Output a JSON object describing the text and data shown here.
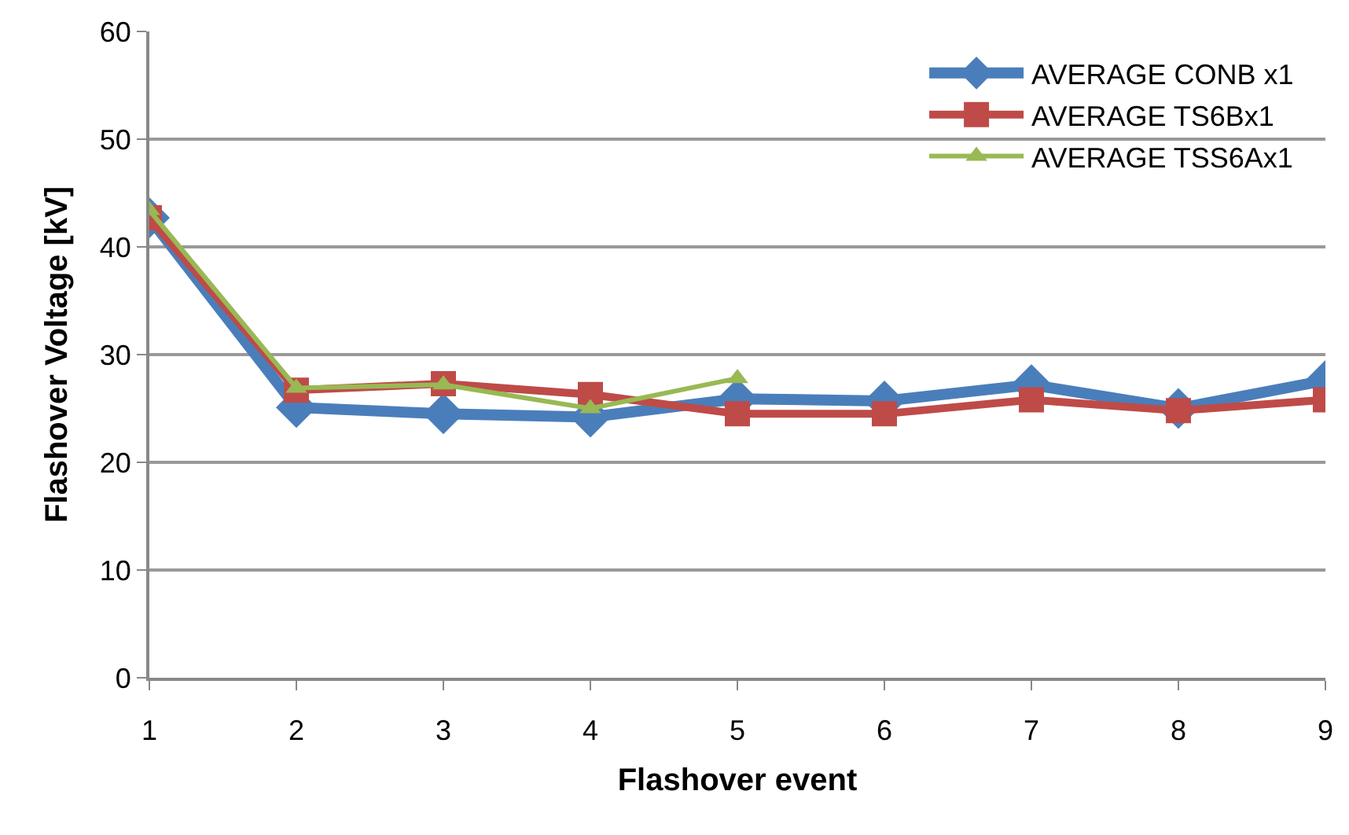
{
  "chart_data": {
    "type": "line",
    "xlabel": "Flashover event",
    "ylabel": "Flashover Voltage [kV]",
    "categories": [
      "1",
      "2",
      "3",
      "4",
      "5",
      "6",
      "7",
      "8",
      "9"
    ],
    "series": [
      {
        "name": "AVERAGE CONB x1",
        "color": "#4a7ebb",
        "marker": "diamond",
        "values": [
          42.7,
          25.1,
          24.5,
          24.2,
          25.9,
          25.7,
          27.2,
          25.0,
          27.6
        ]
      },
      {
        "name": "AVERAGE TS6Bx1",
        "color": "#be4b48",
        "marker": "square",
        "values": [
          42.7,
          26.7,
          27.3,
          26.3,
          24.5,
          24.5,
          25.8,
          24.8,
          25.8
        ]
      },
      {
        "name": "AVERAGE TSS6Ax1",
        "color": "#98b954",
        "marker": "triangle",
        "values": [
          43.4,
          26.9,
          27.2,
          25.0,
          27.8,
          null,
          null,
          null,
          null
        ]
      }
    ],
    "ylim": [
      0,
      60
    ],
    "yticks": [
      0,
      10,
      20,
      30,
      40,
      50,
      60
    ],
    "grid": "y",
    "legend": "top right",
    "line_style": "solid"
  }
}
